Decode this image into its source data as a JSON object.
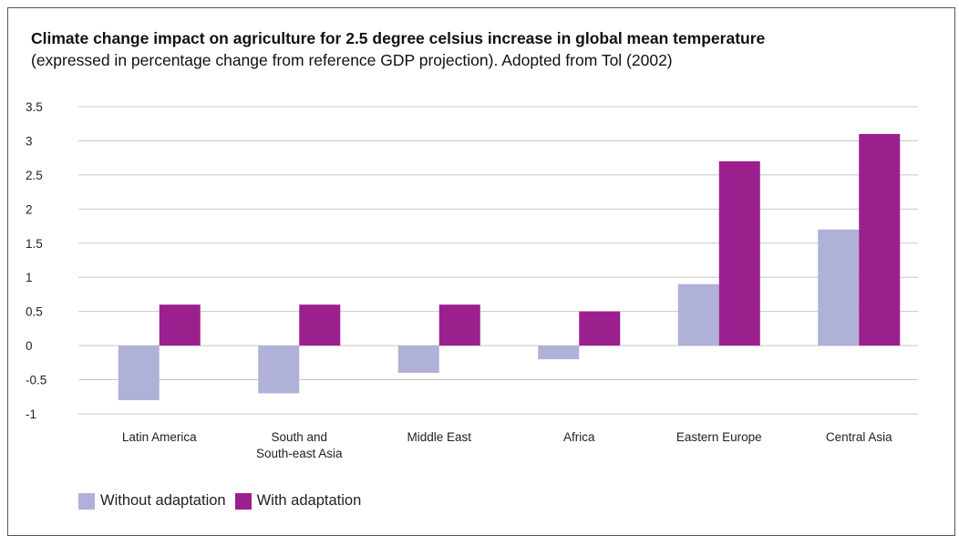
{
  "colors": {
    "without": "#b0b1d8",
    "with": "#9c1f8e",
    "grid": "#c8c8c8"
  },
  "chart_data": {
    "type": "bar",
    "title": "Climate change impact on agriculture for 2.5 degree celsius increase in global mean temperature",
    "subtitle": "(expressed in percentage change from reference GDP projection). Adopted from Tol (2002)",
    "categories": [
      [
        "Latin America"
      ],
      [
        "South and",
        "South-east Asia"
      ],
      [
        "Middle East"
      ],
      [
        "Africa"
      ],
      [
        "Eastern Europe"
      ],
      [
        "Central Asia"
      ]
    ],
    "series": [
      {
        "name": "Without adaptation",
        "values": [
          -0.8,
          -0.7,
          -0.4,
          -0.2,
          0.9,
          1.7
        ]
      },
      {
        "name": "With adaptation",
        "values": [
          0.6,
          0.6,
          0.6,
          0.5,
          2.7,
          3.1
        ]
      }
    ],
    "ylim": [
      -1,
      3.5
    ],
    "yticks": [
      "3.5",
      "3",
      "2.5",
      "2",
      "1.5",
      "1",
      "0.5",
      "0",
      "-0.5",
      "-1"
    ],
    "grid": true,
    "legend": "bottom-left"
  }
}
